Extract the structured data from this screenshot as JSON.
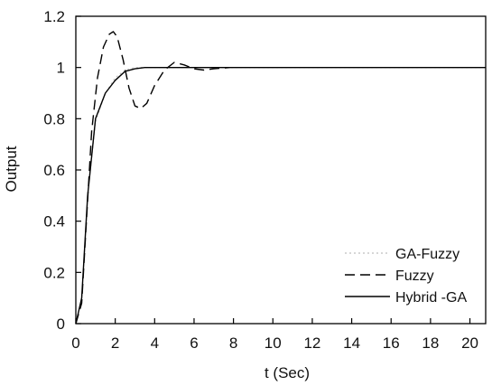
{
  "chart_data": {
    "type": "line",
    "title": "",
    "xlabel": "t (Sec)",
    "ylabel": "Output",
    "xlim": [
      0,
      20.8
    ],
    "ylim": [
      0,
      1.2
    ],
    "xticks": [
      "0",
      "2",
      "4",
      "6",
      "8",
      "10",
      "12",
      "14",
      "16",
      "18",
      "20"
    ],
    "yticks": [
      "0",
      "0.2",
      "0.4",
      "0.6",
      "0.8",
      "1",
      "1.2"
    ],
    "grid": false,
    "legend_position": "bottom-right",
    "series": [
      {
        "name": "GA-Fuzzy",
        "style": "dotted",
        "color": "#bfbfbf",
        "x": [
          0,
          0.3,
          0.6,
          1.0,
          1.5,
          2.0,
          2.5,
          3.0,
          4.0,
          5.0,
          6.0,
          8.0,
          10.0,
          14.0,
          20.8
        ],
        "y": [
          0,
          0.1,
          0.5,
          0.79,
          0.9,
          0.96,
          0.99,
          1.0,
          1.0,
          1.0,
          1.0,
          1.0,
          1.0,
          1.0,
          1.0
        ]
      },
      {
        "name": "Fuzzy",
        "style": "dashed",
        "color": "#000000",
        "x": [
          0,
          0.3,
          0.5,
          0.8,
          1.1,
          1.4,
          1.7,
          1.9,
          2.1,
          2.4,
          2.7,
          3.0,
          3.3,
          3.6,
          4.0,
          4.5,
          5.0,
          5.5,
          6.0,
          6.5,
          7.0,
          7.8
        ],
        "y": [
          0,
          0.08,
          0.35,
          0.75,
          0.96,
          1.08,
          1.13,
          1.14,
          1.12,
          1.03,
          0.92,
          0.85,
          0.84,
          0.86,
          0.93,
          0.99,
          1.02,
          1.01,
          0.995,
          0.99,
          0.995,
          1.0
        ]
      },
      {
        "name": "Hybrid -GA",
        "style": "solid",
        "color": "#000000",
        "x": [
          0,
          0.3,
          0.6,
          1.0,
          1.5,
          2.0,
          2.5,
          3.0,
          3.5,
          4.0,
          5.0,
          6.0,
          8.0,
          12.0,
          20.8
        ],
        "y": [
          0,
          0.1,
          0.5,
          0.8,
          0.9,
          0.95,
          0.985,
          0.995,
          1.0,
          1.0,
          1.0,
          1.0,
          1.0,
          1.0,
          1.0
        ]
      }
    ]
  }
}
